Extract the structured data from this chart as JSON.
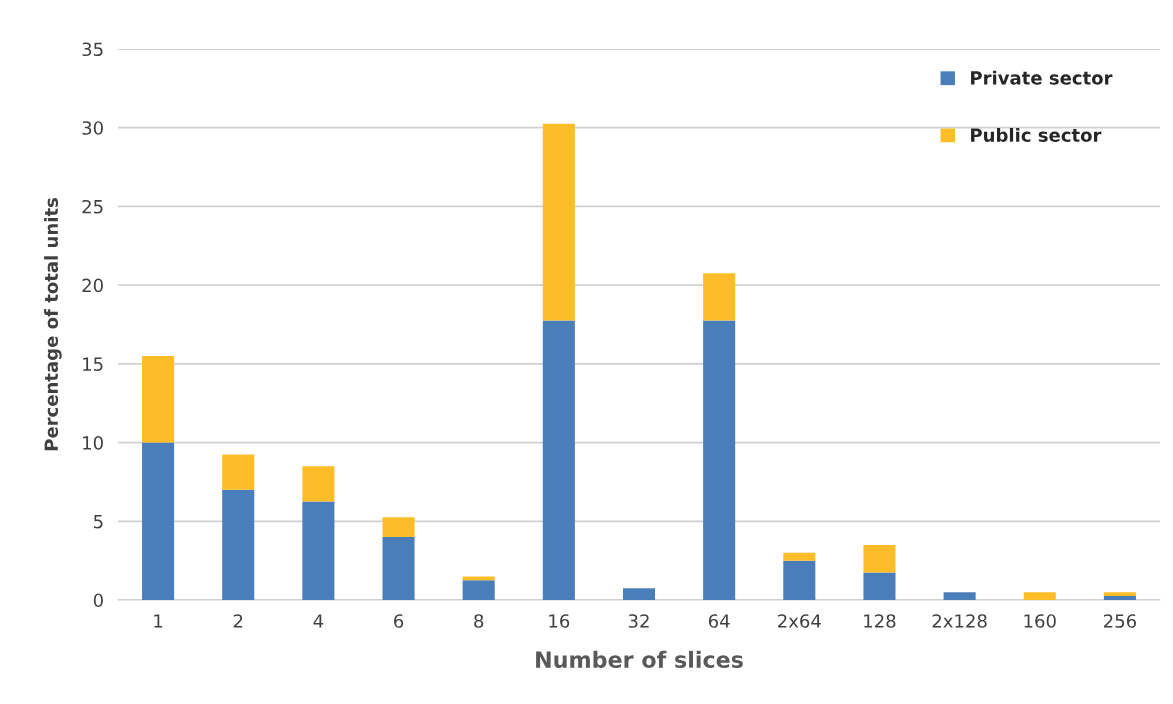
{
  "chart_data": {
    "type": "bar",
    "stacked": true,
    "xlabel": "Number of slices",
    "ylabel": "Percentage of total units",
    "categories": [
      "1",
      "2",
      "4",
      "6",
      "8",
      "16",
      "32",
      "64",
      "2x64",
      "128",
      "2x128",
      "160",
      "256"
    ],
    "series": [
      {
        "name": "Private sector",
        "color": "#4a7ebb",
        "values": [
          10,
          7,
          6.25,
          4,
          1.25,
          17.75,
          0.75,
          17.75,
          2.5,
          1.75,
          0.5,
          0,
          0.25
        ]
      },
      {
        "name": "Public sector",
        "color": "#fdbd28",
        "values": [
          5.5,
          2.25,
          2.25,
          1.25,
          0.25,
          12.5,
          0,
          3,
          0.5,
          1.75,
          0,
          0.5,
          0.25
        ]
      }
    ],
    "ylim": [
      0,
      35
    ],
    "yticks": [
      0,
      5,
      10,
      15,
      20,
      25,
      30,
      35
    ],
    "grid": "y",
    "legend": "top right"
  }
}
